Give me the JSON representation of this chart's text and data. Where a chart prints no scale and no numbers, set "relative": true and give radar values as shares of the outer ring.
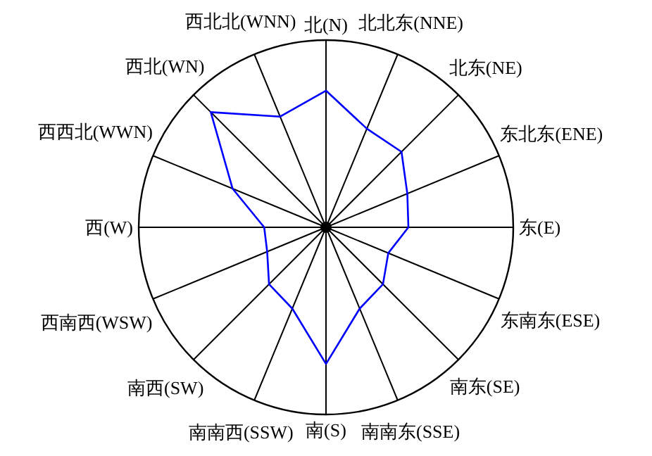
{
  "chart_data": {
    "type": "radar",
    "relative": true,
    "categories": [
      "北(N)",
      "北北东(NNE)",
      "北东(NE)",
      "东北东(ENE)",
      "东(E)",
      "东南东(ESE)",
      "南东(SE)",
      "南南东(SSE)",
      "南(S)",
      "南南西(SSW)",
      "南西(SW)",
      "西南西(WSW)",
      "西(W)",
      "西西北(WWN)",
      "西北(WN)",
      "西北北(WNN)"
    ],
    "series": [
      {
        "color": "#0000ff",
        "values": [
          0.73,
          0.57,
          0.57,
          0.47,
          0.44,
          0.36,
          0.43,
          0.47,
          0.73,
          0.47,
          0.43,
          0.34,
          0.33,
          0.54,
          0.87,
          0.64
        ]
      }
    ],
    "marker": "none",
    "line_style": "solid"
  }
}
